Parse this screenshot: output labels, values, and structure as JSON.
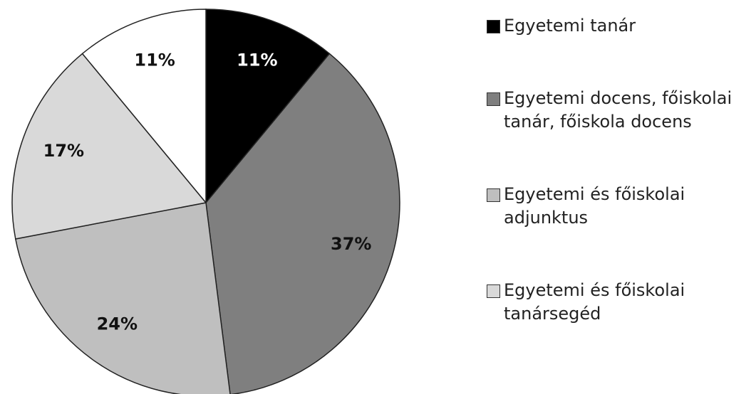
{
  "chart_data": {
    "type": "pie",
    "categories": [
      "Egyetemi tanár",
      "Egyetemi docens, főiskolai tanár, főiskola docens",
      "Egyetemi és főiskolai adjunktus",
      "Egyetemi és főiskolai tanársegéd",
      null
    ],
    "values": [
      11,
      37,
      24,
      17,
      11
    ],
    "value_labels": [
      "11%",
      "37%",
      "24%",
      "17%",
      "11%"
    ],
    "colors": [
      "#000000",
      "#7f7f7f",
      "#bfbfbf",
      "#d9d9d9",
      "#ffffff"
    ],
    "legend": "right"
  }
}
